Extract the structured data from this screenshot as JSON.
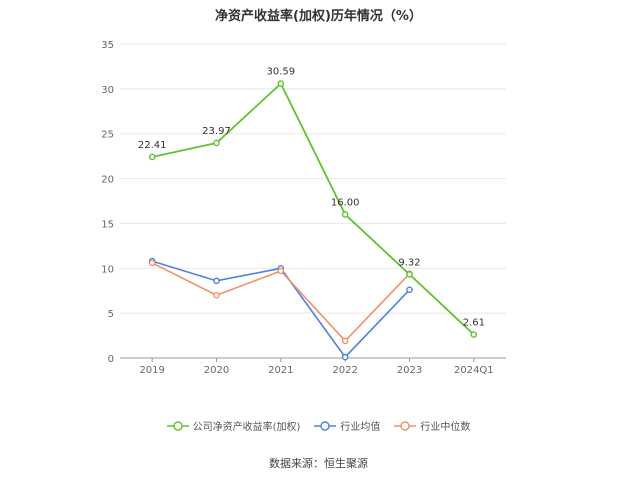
{
  "title": "净资产收益率(加权)历年情况（%）",
  "source": "数据来源：恒生聚源",
  "chart_data": {
    "type": "line",
    "categories": [
      "2019",
      "2020",
      "2021",
      "2022",
      "2023",
      "2024Q1"
    ],
    "ylim": [
      0,
      35
    ],
    "yticks": [
      0,
      5,
      10,
      15,
      20,
      25,
      30,
      35
    ],
    "grid": true,
    "legend_position": "bottom",
    "series": [
      {
        "name": "公司净资产收益率(加权)",
        "color": "#5cc42e",
        "values": [
          22.41,
          23.97,
          30.59,
          16.0,
          9.32,
          2.61
        ],
        "labels": [
          "22.41",
          "23.97",
          "30.59",
          "16.00",
          "9.32",
          "2.61"
        ]
      },
      {
        "name": "行业均值",
        "color": "#4f7fe0",
        "values": [
          10.8,
          8.6,
          10.0,
          0.1,
          7.6,
          null
        ]
      },
      {
        "name": "行业中位数",
        "color": "#f0916b",
        "values": [
          10.6,
          7.0,
          9.7,
          1.9,
          9.4,
          null
        ]
      }
    ]
  }
}
